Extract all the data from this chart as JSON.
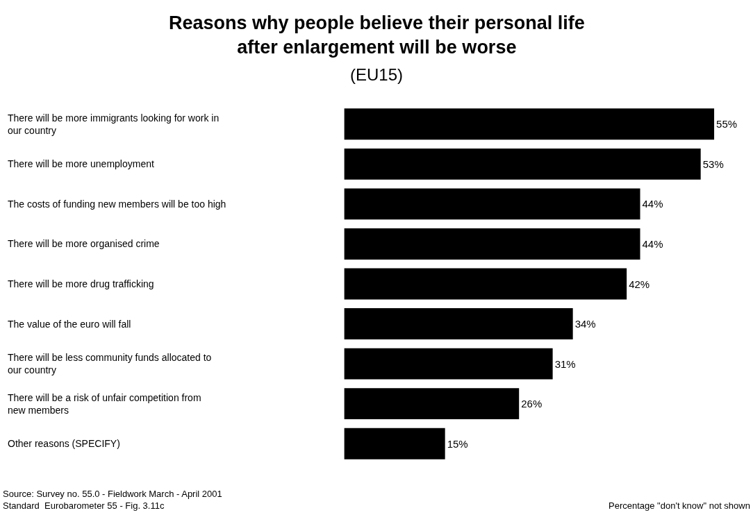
{
  "chart_data": {
    "type": "bar",
    "orientation": "horizontal",
    "title": "Reasons why people believe their personal life after enlargement will be worse",
    "subtitle": "(EU15)",
    "categories": [
      "There will be more immigrants looking for work in our country",
      "There will be more unemployment",
      "The costs of funding new members will be too high",
      "There will be more organised crime",
      "There will be more drug trafficking",
      "The value of the euro will fall",
      "There will be less community funds allocated to our country",
      "There will be a risk of unfair competition from new members",
      "Other reasons (SPECIFY)"
    ],
    "values": [
      55,
      53,
      44,
      44,
      42,
      34,
      31,
      26,
      15
    ],
    "value_labels": [
      "55%",
      "53%",
      "44%",
      "44%",
      "42%",
      "34%",
      "31%",
      "26%",
      "15%"
    ],
    "color": "#000000",
    "legend": false,
    "annotations": [
      "Source: Survey no. 55.0 - Fieldwork March - April 2001",
      "Standard  Eurobarometer 55 - Fig. 3.11c",
      "Percentage \"don't know\" not shown"
    ]
  }
}
